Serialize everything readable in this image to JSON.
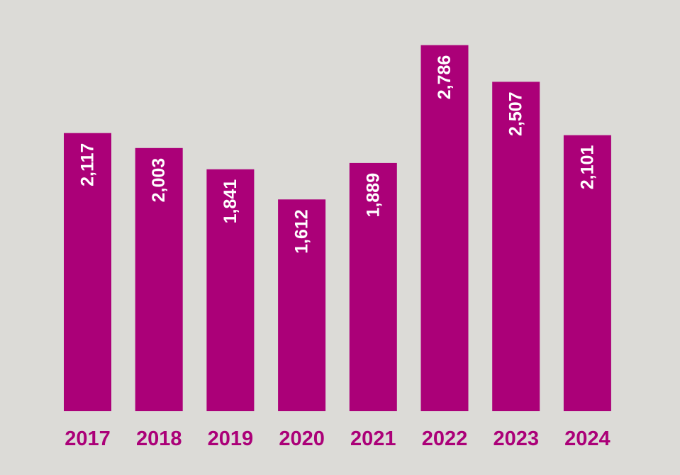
{
  "chart_data": {
    "type": "bar",
    "title": "",
    "xlabel": "",
    "ylabel": "",
    "categories": [
      "2017",
      "2018",
      "2019",
      "2020",
      "2021",
      "2022",
      "2023",
      "2024"
    ],
    "values": [
      2117,
      2003,
      1841,
      1612,
      1889,
      2786,
      2507,
      2101
    ],
    "value_labels": [
      "2,117",
      "2,003",
      "1,841",
      "1,612",
      "1,889",
      "2,786",
      "2,507",
      "2,101"
    ],
    "ylim": [
      0,
      2860
    ],
    "grid": false,
    "legend": "none",
    "colors": {
      "bar": "#ab0078",
      "category_label": "#ab0078",
      "value_label": "#ffffff",
      "background": "#dcdbd7"
    }
  }
}
